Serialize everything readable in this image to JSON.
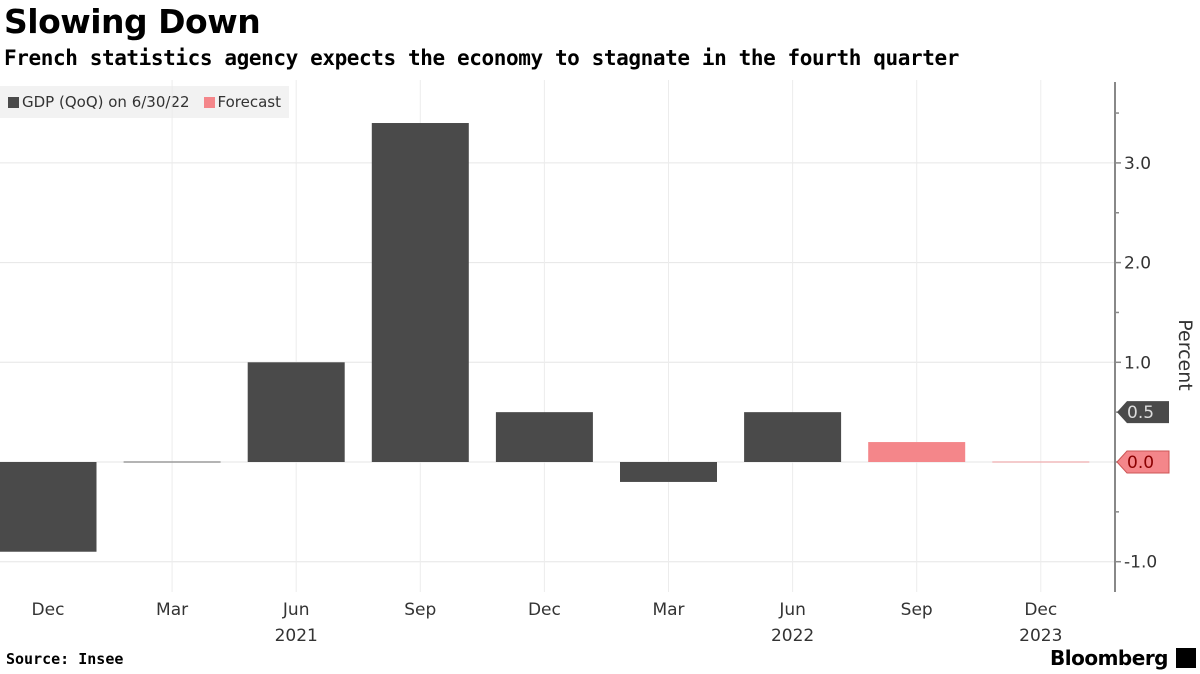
{
  "chart_data": {
    "type": "bar",
    "title": "Slowing Down",
    "subtitle": "French statistics agency expects the economy to stagnate in the fourth quarter",
    "ylabel": "Percent",
    "ylim": [
      -1.2,
      3.8
    ],
    "yticks": [
      -1.0,
      0.0,
      1.0,
      2.0,
      3.0
    ],
    "ytick_labels": [
      "-1.0",
      "0.0",
      "1.0",
      "2.0",
      "3.0"
    ],
    "categories": [
      "Dec",
      "Mar",
      "Jun",
      "Sep",
      "Dec",
      "Mar",
      "Jun",
      "Sep",
      "Dec"
    ],
    "year_labels": [
      "",
      "",
      "2021",
      "",
      "",
      "",
      "2022",
      "",
      "2023"
    ],
    "series": [
      {
        "name": "GDP (QoQ) on 6/30/22",
        "color": "#4a4a4a",
        "values": [
          -0.9,
          0.0,
          1.0,
          3.4,
          0.5,
          -0.2,
          0.5,
          null,
          null
        ]
      },
      {
        "name": "Forecast",
        "color": "#f4868a",
        "values": [
          null,
          null,
          null,
          null,
          null,
          null,
          null,
          0.2,
          0.0
        ]
      }
    ],
    "last_value_tags": [
      {
        "label": "0.5",
        "value": 0.5,
        "color": "#4a4a4a",
        "text_color": "#dddddd"
      },
      {
        "label": "0.0",
        "value": 0.0,
        "color": "#f4868a",
        "text_color": "#8b0000"
      }
    ],
    "grid": true,
    "legend_position": "top-left"
  },
  "footer": {
    "source": "Source: Insee",
    "brand": "Bloomberg"
  }
}
